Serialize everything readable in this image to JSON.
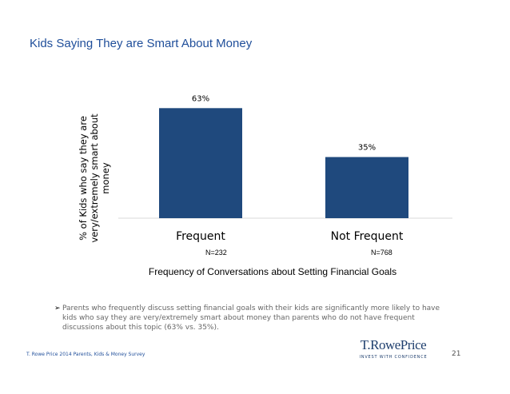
{
  "slide": {
    "title": "Kids Saying They are Smart About Money",
    "bullet": "Parents who frequently discuss setting financial goals with their kids are significantly more likely to have kids who say they are very/extremely smart about money than parents who do not have frequent discussions about this topic (63% vs. 35%).",
    "footer": "T. Rowe Price 2014 Parents, Kids & Money Survey",
    "page_number": "21",
    "logo": {
      "name": "T.RowePrice",
      "tagline": "INVEST WITH CONFIDENCE"
    }
  },
  "chart_data": {
    "type": "bar",
    "categories": [
      "Frequent",
      "Not Frequent"
    ],
    "values": [
      63,
      35
    ],
    "data_labels": [
      "63%",
      "35%"
    ],
    "sample_sizes": [
      "N=232",
      "N=768"
    ],
    "title": "",
    "xlabel": "Frequency of Conversations about Setting Financial Goals",
    "ylabel": "% of Kids who say they are very/extremely smart about money",
    "ylim": [
      0,
      70
    ],
    "grid": false,
    "bar_color": "#1f497d"
  }
}
